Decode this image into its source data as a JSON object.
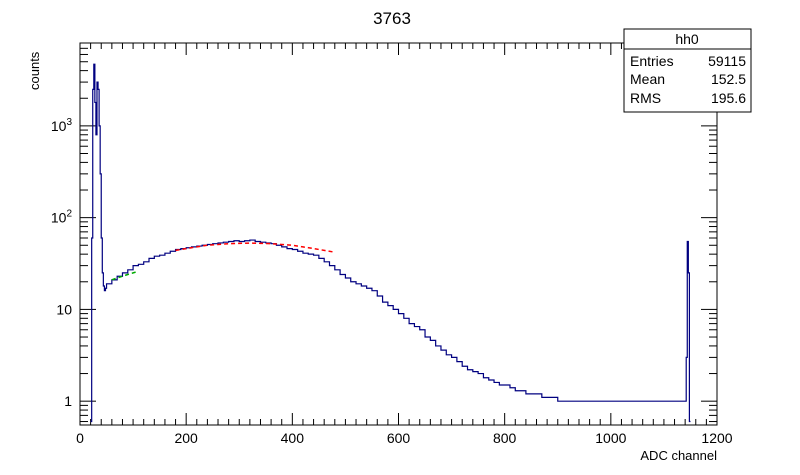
{
  "chart_data": {
    "type": "histogram",
    "title": "3763",
    "xlabel": "ADC channel",
    "ylabel": "counts",
    "x_range": [
      0,
      1200
    ],
    "y_range": [
      0.55,
      8000
    ],
    "y_scale": "log",
    "x_ticks": [
      {
        "value": 0,
        "label": "0"
      },
      {
        "value": 200,
        "label": "200"
      },
      {
        "value": 400,
        "label": "400"
      },
      {
        "value": 600,
        "label": "600"
      },
      {
        "value": 800,
        "label": "800"
      },
      {
        "value": 1000,
        "label": "1000"
      },
      {
        "value": 1200,
        "label": "1200"
      }
    ],
    "y_ticks": [
      {
        "value": 1,
        "base": "1",
        "exp": ""
      },
      {
        "value": 10,
        "base": "10",
        "exp": ""
      },
      {
        "value": 100,
        "base": "10",
        "exp": "2"
      },
      {
        "value": 1000,
        "base": "10",
        "exp": "3"
      }
    ],
    "histogram_color": "#000080",
    "fit_color": "#ff0000",
    "fit2_color": "#00aa00",
    "series": [
      {
        "style": "step",
        "x": [
          20,
          22,
          24,
          26,
          28,
          30,
          32,
          34,
          36,
          38,
          40,
          42,
          44,
          46,
          48,
          50,
          60,
          70,
          80,
          90,
          100,
          110,
          120,
          130,
          140,
          150,
          160,
          170,
          180,
          190,
          200,
          210,
          220,
          230,
          240,
          250,
          260,
          270,
          280,
          290,
          300,
          310,
          320,
          330,
          340,
          350,
          360,
          370,
          380,
          390,
          400,
          410,
          420,
          430,
          440,
          450,
          460,
          470,
          480,
          490,
          500,
          510,
          520,
          530,
          540,
          550,
          560,
          570,
          580,
          590,
          600,
          610,
          620,
          630,
          640,
          650,
          660,
          670,
          680,
          690,
          700,
          710,
          720,
          730,
          740,
          750,
          760,
          770,
          780,
          790,
          800,
          810,
          820,
          830,
          840,
          850,
          860,
          870,
          880,
          890,
          900,
          910,
          920,
          930,
          940,
          950,
          960,
          970,
          980,
          990,
          1000,
          1010,
          1020,
          1030,
          1040,
          1050,
          1060,
          1070,
          1080,
          1090,
          1100,
          1110,
          1120,
          1130,
          1140,
          1142,
          1144,
          1146,
          1148,
          1150
        ],
        "y": [
          0.6,
          60,
          2500,
          4700,
          1800,
          800,
          3000,
          2500,
          1000,
          300,
          60,
          25,
          18,
          16,
          17,
          19,
          21,
          23,
          25,
          27,
          30,
          31,
          33,
          36,
          38,
          39,
          41,
          43,
          45,
          46,
          47,
          48,
          49,
          50,
          51,
          52,
          53,
          54,
          55,
          56,
          55,
          56,
          57,
          55,
          54,
          53,
          52,
          50,
          48,
          46,
          45,
          43,
          41,
          40,
          39,
          36,
          33,
          30,
          27,
          24,
          22,
          20,
          19,
          18,
          17,
          16,
          14,
          12,
          11,
          10,
          9,
          8,
          7,
          6.5,
          6,
          5,
          4.6,
          4,
          3.6,
          3.2,
          3,
          2.7,
          2.4,
          2.2,
          2.1,
          2,
          1.8,
          1.7,
          1.6,
          1.5,
          1.5,
          1.4,
          1.3,
          1.3,
          1.2,
          1.2,
          1.2,
          1.1,
          1.1,
          1.1,
          1,
          1,
          1,
          1,
          1,
          1,
          1,
          1,
          1,
          1,
          1,
          1,
          1,
          1,
          1,
          1,
          1,
          1,
          1,
          1,
          1,
          1,
          1,
          1,
          1,
          3,
          55,
          25,
          0.6
        ]
      },
      {
        "style": "fit",
        "x": [
          180,
          200,
          220,
          240,
          260,
          280,
          300,
          320,
          340,
          360,
          380,
          400,
          420,
          440,
          460,
          480
        ],
        "y": [
          44,
          46,
          48,
          50,
          51,
          52,
          52.5,
          52.8,
          52.5,
          52,
          51,
          50,
          48,
          46,
          44,
          42
        ]
      },
      {
        "style": "fit2",
        "x": [
          60,
          70,
          80,
          90,
          100,
          110
        ],
        "y": [
          21,
          22,
          23,
          24,
          25,
          26
        ]
      }
    ]
  },
  "stats_box": {
    "title": "hh0",
    "rows": [
      {
        "label": "Entries",
        "value": "59115"
      },
      {
        "label": "Mean",
        "value": "152.5"
      },
      {
        "label": "RMS",
        "value": "195.6"
      }
    ]
  }
}
